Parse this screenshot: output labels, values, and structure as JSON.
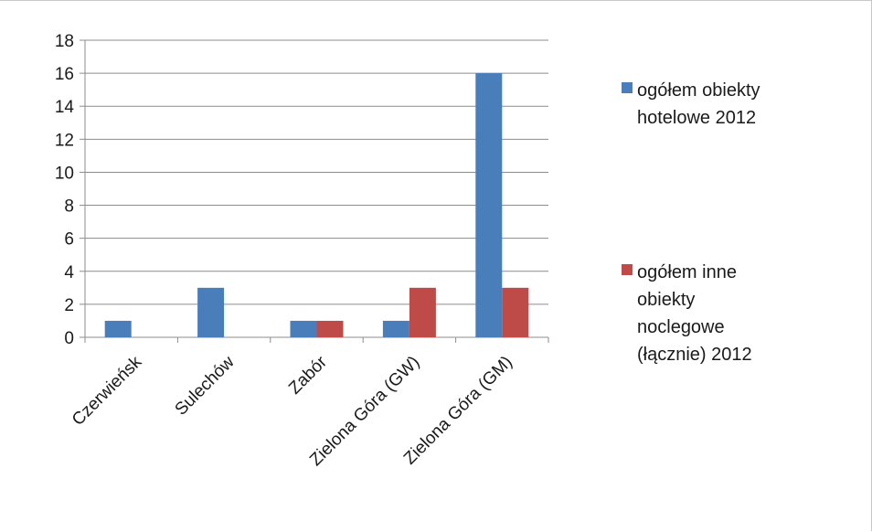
{
  "chart_data": {
    "type": "bar",
    "categories": [
      "Czerwieńsk",
      "Sulechów",
      "Zabór",
      "Zielona Góra (GW)",
      "Zielona Góra (GM)"
    ],
    "series": [
      {
        "name": "ogółem obiekty hotelowe 2012",
        "name_lines": [
          "ogółem obiekty",
          "hotelowe 2012"
        ],
        "color": "#4a7ebb",
        "values": [
          1,
          3,
          1,
          1,
          16
        ]
      },
      {
        "name": "ogółem inne obiekty noclegowe (łącznie) 2012",
        "name_lines": [
          "ogółem inne",
          "obiekty",
          "noclegowe",
          "(łącznie) 2012"
        ],
        "color": "#be4b48",
        "values": [
          0,
          0,
          1,
          3,
          3
        ]
      }
    ],
    "ylim": [
      0,
      18
    ],
    "yticks": [
      0,
      2,
      4,
      6,
      8,
      10,
      12,
      14,
      16,
      18
    ],
    "grid": true,
    "legend_position": "right"
  }
}
